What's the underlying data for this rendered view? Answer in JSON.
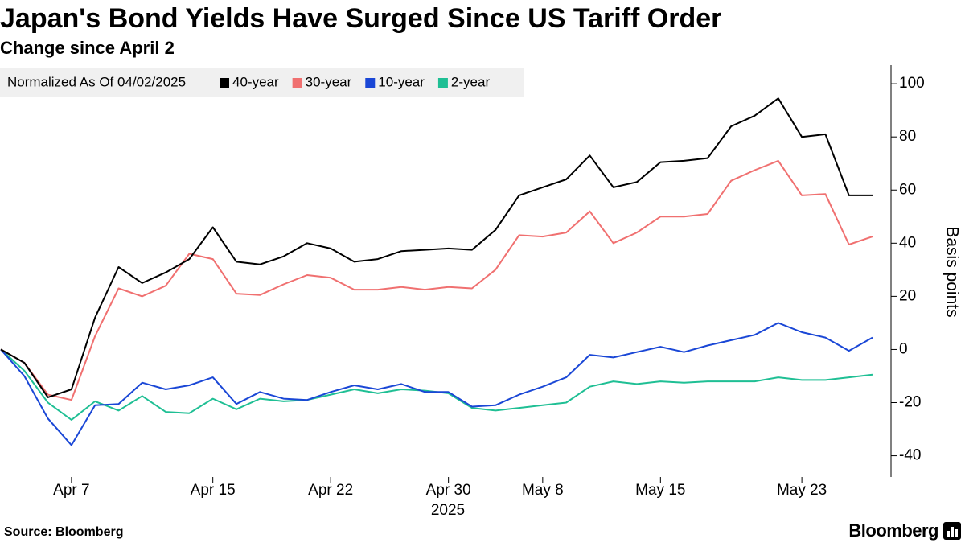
{
  "chart_data": {
    "type": "line",
    "title": "Japan's Bond Yields Have Surged Since US Tariff Order",
    "subtitle": "Change since April 2",
    "legend_title": "Normalized As Of 04/02/2025",
    "y_label": "Basis points",
    "x_year_label": "2025",
    "source": "Source: Bloomberg",
    "brand": "Bloomberg",
    "categories": [
      null,
      null,
      null,
      "Apr 7",
      null,
      null,
      null,
      null,
      null,
      "Apr 15",
      null,
      null,
      null,
      null,
      "Apr 22",
      null,
      null,
      null,
      null,
      "Apr 30",
      null,
      null,
      null,
      "May 8",
      null,
      null,
      null,
      null,
      "May 15",
      null,
      null,
      null,
      null,
      null,
      "May 23",
      null,
      null,
      null
    ],
    "series": [
      {
        "name": "40-year",
        "color": "#000000",
        "values": [
          0,
          -5,
          -18,
          -15,
          12,
          31,
          25,
          29,
          34,
          46,
          33,
          32,
          35,
          40,
          38,
          33,
          34,
          37,
          37.5,
          38,
          37.5,
          45,
          58,
          61,
          64,
          73,
          61,
          63,
          70.5,
          71,
          72,
          84,
          88,
          94.5,
          80,
          81,
          58,
          58
        ]
      },
      {
        "name": "30-year",
        "color": "#f07070",
        "values": [
          0,
          -5,
          -17,
          -19,
          5,
          23,
          20,
          24,
          36,
          34,
          21,
          20.5,
          24.5,
          28,
          27,
          22.5,
          22.5,
          23.5,
          22.5,
          23.5,
          23,
          30,
          43,
          42.5,
          44,
          52,
          40,
          44,
          50,
          50,
          51,
          63.5,
          67.5,
          71,
          58,
          58.5,
          39.5,
          42.5
        ]
      },
      {
        "name": "10-year",
        "color": "#1a47d6",
        "values": [
          0,
          -10,
          -26,
          -36,
          -21,
          -20.5,
          -12.5,
          -15,
          -13.5,
          -10.5,
          -20.5,
          -16,
          -18.5,
          -19,
          -16,
          -13.5,
          -15,
          -13,
          -16,
          -16,
          -21.5,
          -21,
          -17,
          -14,
          -10.5,
          -2,
          -3,
          -1,
          1,
          -1,
          1.5,
          3.5,
          5.5,
          10,
          6.5,
          4.5,
          -0.5,
          4.5
        ]
      },
      {
        "name": "2-year",
        "color": "#1fbf94",
        "values": [
          0,
          -8,
          -20,
          -26.5,
          -19.5,
          -23,
          -17.5,
          -23.5,
          -24,
          -18.5,
          -22.5,
          -18.5,
          -19.5,
          -19,
          -17,
          -15,
          -16.5,
          -15,
          -15.5,
          -16.5,
          -22,
          -23,
          -22,
          -21,
          -20,
          -14,
          -12,
          -13,
          -12,
          -12.5,
          -12,
          -12,
          -12,
          -10.5,
          -11.5,
          -11.5,
          -10.5,
          -9.5
        ]
      }
    ],
    "ylim": [
      -48,
      107
    ],
    "yticks": [
      -40,
      -20,
      0,
      20,
      40,
      60,
      80,
      100
    ],
    "y_axis_side": "right",
    "grid": false
  }
}
